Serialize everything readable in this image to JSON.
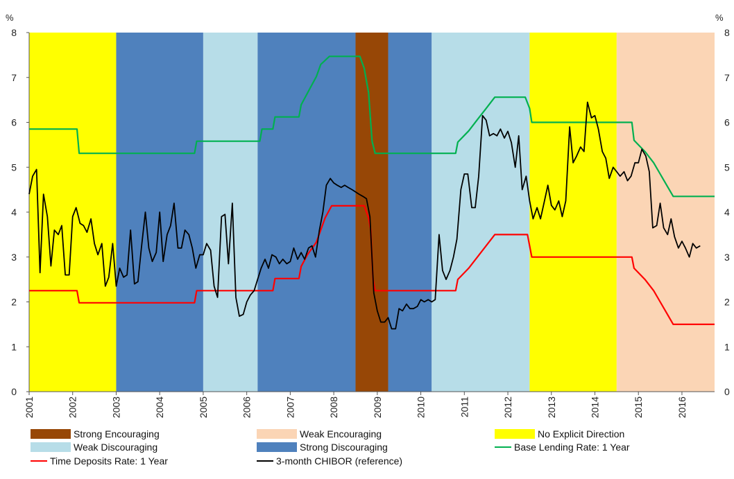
{
  "chart_data": {
    "type": "line",
    "y_unit_left": "%",
    "y_unit_right": "%",
    "ylim": [
      0,
      8
    ],
    "y_ticks": [
      "0",
      "1",
      "2",
      "3",
      "4",
      "5",
      "6",
      "7",
      "8"
    ],
    "xlim": [
      2001.0,
      2016.75
    ],
    "x_ticks": [
      "2001",
      "2002",
      "2003",
      "2004",
      "2005",
      "2006",
      "2007",
      "2008",
      "2009",
      "2010",
      "2011",
      "2012",
      "2013",
      "2014",
      "2015",
      "2016"
    ],
    "grid": false,
    "legend_position": "bottom",
    "categories": {
      "strong_encouraging": {
        "label": "Strong Encouraging",
        "color": "#974706"
      },
      "weak_encouraging": {
        "label": "Weak Encouraging",
        "color": "#fbd5b5"
      },
      "no_explicit": {
        "label": "No Explicit Direction",
        "color": "#ffff00"
      },
      "weak_discouraging": {
        "label": "Weak Discouraging",
        "color": "#b7dde8"
      },
      "strong_discouraging": {
        "label": "Strong Discouraging",
        "color": "#4f81bd"
      }
    },
    "regimes": [
      {
        "start": 2001.0,
        "end": 2003.0,
        "category": "no_explicit"
      },
      {
        "start": 2003.0,
        "end": 2005.0,
        "category": "strong_discouraging"
      },
      {
        "start": 2005.0,
        "end": 2006.25,
        "category": "weak_discouraging"
      },
      {
        "start": 2006.25,
        "end": 2008.5,
        "category": "strong_discouraging"
      },
      {
        "start": 2008.5,
        "end": 2009.25,
        "category": "strong_encouraging"
      },
      {
        "start": 2009.25,
        "end": 2010.25,
        "category": "strong_discouraging"
      },
      {
        "start": 2010.25,
        "end": 2012.5,
        "category": "weak_discouraging"
      },
      {
        "start": 2012.5,
        "end": 2014.5,
        "category": "no_explicit"
      },
      {
        "start": 2014.5,
        "end": 2016.75,
        "category": "weak_encouraging"
      }
    ],
    "series": [
      {
        "name": "Base Lending Rate: 1 Year",
        "color": "#00b050",
        "step": true,
        "points": [
          [
            2001.0,
            5.85
          ],
          [
            2002.1,
            5.85
          ],
          [
            2002.15,
            5.31
          ],
          [
            2004.8,
            5.31
          ],
          [
            2004.85,
            5.58
          ],
          [
            2006.3,
            5.58
          ],
          [
            2006.35,
            5.85
          ],
          [
            2006.6,
            5.85
          ],
          [
            2006.65,
            6.12
          ],
          [
            2007.2,
            6.12
          ],
          [
            2007.25,
            6.39
          ],
          [
            2007.35,
            6.57
          ],
          [
            2007.5,
            6.84
          ],
          [
            2007.6,
            7.02
          ],
          [
            2007.7,
            7.29
          ],
          [
            2007.9,
            7.47
          ],
          [
            2008.6,
            7.47
          ],
          [
            2008.7,
            7.2
          ],
          [
            2008.8,
            6.66
          ],
          [
            2008.88,
            5.58
          ],
          [
            2008.95,
            5.31
          ],
          [
            2010.8,
            5.31
          ],
          [
            2010.85,
            5.56
          ],
          [
            2011.1,
            5.81
          ],
          [
            2011.3,
            6.06
          ],
          [
            2011.5,
            6.31
          ],
          [
            2011.7,
            6.56
          ],
          [
            2012.4,
            6.56
          ],
          [
            2012.5,
            6.31
          ],
          [
            2012.55,
            6.0
          ],
          [
            2014.85,
            6.0
          ],
          [
            2014.9,
            5.6
          ],
          [
            2015.15,
            5.35
          ],
          [
            2015.35,
            5.1
          ],
          [
            2015.5,
            4.85
          ],
          [
            2015.65,
            4.6
          ],
          [
            2015.8,
            4.35
          ],
          [
            2016.75,
            4.35
          ]
        ]
      },
      {
        "name": "Time Deposits Rate: 1 Year",
        "color": "#ff0000",
        "step": true,
        "points": [
          [
            2001.0,
            2.25
          ],
          [
            2002.1,
            2.25
          ],
          [
            2002.15,
            1.98
          ],
          [
            2004.8,
            1.98
          ],
          [
            2004.85,
            2.25
          ],
          [
            2006.6,
            2.25
          ],
          [
            2006.65,
            2.52
          ],
          [
            2007.2,
            2.52
          ],
          [
            2007.25,
            2.79
          ],
          [
            2007.4,
            3.06
          ],
          [
            2007.6,
            3.33
          ],
          [
            2007.7,
            3.6
          ],
          [
            2007.8,
            3.87
          ],
          [
            2007.95,
            4.14
          ],
          [
            2008.7,
            4.14
          ],
          [
            2008.8,
            3.87
          ],
          [
            2008.85,
            3.6
          ],
          [
            2008.9,
            2.52
          ],
          [
            2008.95,
            2.25
          ],
          [
            2010.8,
            2.25
          ],
          [
            2010.85,
            2.5
          ],
          [
            2011.1,
            2.75
          ],
          [
            2011.3,
            3.0
          ],
          [
            2011.5,
            3.25
          ],
          [
            2011.7,
            3.5
          ],
          [
            2012.45,
            3.5
          ],
          [
            2012.5,
            3.25
          ],
          [
            2012.55,
            3.0
          ],
          [
            2014.85,
            3.0
          ],
          [
            2014.9,
            2.75
          ],
          [
            2015.15,
            2.5
          ],
          [
            2015.35,
            2.25
          ],
          [
            2015.5,
            2.0
          ],
          [
            2015.65,
            1.75
          ],
          [
            2015.8,
            1.5
          ],
          [
            2016.75,
            1.5
          ]
        ]
      },
      {
        "name": "3-month CHIBOR (reference)",
        "color": "#000000",
        "step": false,
        "points": [
          [
            2001.0,
            4.4
          ],
          [
            2001.08,
            4.8
          ],
          [
            2001.17,
            4.95
          ],
          [
            2001.25,
            2.65
          ],
          [
            2001.33,
            4.4
          ],
          [
            2001.42,
            3.9
          ],
          [
            2001.5,
            2.8
          ],
          [
            2001.58,
            3.6
          ],
          [
            2001.67,
            3.5
          ],
          [
            2001.75,
            3.7
          ],
          [
            2001.83,
            2.6
          ],
          [
            2001.92,
            2.6
          ],
          [
            2002.0,
            3.9
          ],
          [
            2002.08,
            4.1
          ],
          [
            2002.17,
            3.75
          ],
          [
            2002.25,
            3.7
          ],
          [
            2002.33,
            3.55
          ],
          [
            2002.42,
            3.85
          ],
          [
            2002.5,
            3.3
          ],
          [
            2002.58,
            3.05
          ],
          [
            2002.67,
            3.3
          ],
          [
            2002.75,
            2.35
          ],
          [
            2002.83,
            2.55
          ],
          [
            2002.92,
            3.3
          ],
          [
            2003.0,
            2.35
          ],
          [
            2003.08,
            2.75
          ],
          [
            2003.17,
            2.55
          ],
          [
            2003.25,
            2.6
          ],
          [
            2003.33,
            3.6
          ],
          [
            2003.42,
            2.4
          ],
          [
            2003.5,
            2.45
          ],
          [
            2003.58,
            3.2
          ],
          [
            2003.67,
            4.0
          ],
          [
            2003.75,
            3.2
          ],
          [
            2003.83,
            2.9
          ],
          [
            2003.92,
            3.1
          ],
          [
            2004.0,
            4.0
          ],
          [
            2004.08,
            2.9
          ],
          [
            2004.17,
            3.5
          ],
          [
            2004.25,
            3.7
          ],
          [
            2004.33,
            4.2
          ],
          [
            2004.42,
            3.2
          ],
          [
            2004.5,
            3.2
          ],
          [
            2004.58,
            3.6
          ],
          [
            2004.67,
            3.5
          ],
          [
            2004.75,
            3.2
          ],
          [
            2004.83,
            2.75
          ],
          [
            2004.92,
            3.05
          ],
          [
            2005.0,
            3.05
          ],
          [
            2005.08,
            3.3
          ],
          [
            2005.17,
            3.15
          ],
          [
            2005.25,
            2.35
          ],
          [
            2005.33,
            2.1
          ],
          [
            2005.42,
            3.9
          ],
          [
            2005.5,
            3.95
          ],
          [
            2005.58,
            2.85
          ],
          [
            2005.67,
            4.2
          ],
          [
            2005.75,
            2.1
          ],
          [
            2005.83,
            1.68
          ],
          [
            2005.92,
            1.72
          ],
          [
            2006.0,
            2.0
          ],
          [
            2006.08,
            2.15
          ],
          [
            2006.17,
            2.25
          ],
          [
            2006.25,
            2.5
          ],
          [
            2006.33,
            2.75
          ],
          [
            2006.42,
            2.95
          ],
          [
            2006.5,
            2.75
          ],
          [
            2006.58,
            3.05
          ],
          [
            2006.67,
            3.0
          ],
          [
            2006.75,
            2.85
          ],
          [
            2006.83,
            2.95
          ],
          [
            2006.92,
            2.85
          ],
          [
            2007.0,
            2.9
          ],
          [
            2007.08,
            3.2
          ],
          [
            2007.17,
            2.95
          ],
          [
            2007.25,
            3.1
          ],
          [
            2007.33,
            2.95
          ],
          [
            2007.42,
            3.2
          ],
          [
            2007.5,
            3.25
          ],
          [
            2007.58,
            3.0
          ],
          [
            2007.67,
            3.6
          ],
          [
            2007.75,
            4.0
          ],
          [
            2007.83,
            4.6
          ],
          [
            2007.92,
            4.75
          ],
          [
            2008.0,
            4.65
          ],
          [
            2008.08,
            4.6
          ],
          [
            2008.17,
            4.55
          ],
          [
            2008.25,
            4.6
          ],
          [
            2008.33,
            4.55
          ],
          [
            2008.42,
            4.5
          ],
          [
            2008.5,
            4.45
          ],
          [
            2008.58,
            4.4
          ],
          [
            2008.67,
            4.35
          ],
          [
            2008.75,
            4.3
          ],
          [
            2008.83,
            3.9
          ],
          [
            2008.92,
            2.2
          ],
          [
            2009.0,
            1.8
          ],
          [
            2009.08,
            1.55
          ],
          [
            2009.17,
            1.55
          ],
          [
            2009.25,
            1.65
          ],
          [
            2009.33,
            1.4
          ],
          [
            2009.42,
            1.4
          ],
          [
            2009.5,
            1.85
          ],
          [
            2009.58,
            1.8
          ],
          [
            2009.67,
            1.95
          ],
          [
            2009.75,
            1.85
          ],
          [
            2009.83,
            1.85
          ],
          [
            2009.92,
            1.9
          ],
          [
            2010.0,
            2.05
          ],
          [
            2010.08,
            2.0
          ],
          [
            2010.17,
            2.05
          ],
          [
            2010.25,
            2.0
          ],
          [
            2010.33,
            2.05
          ],
          [
            2010.42,
            3.5
          ],
          [
            2010.5,
            2.7
          ],
          [
            2010.58,
            2.5
          ],
          [
            2010.67,
            2.7
          ],
          [
            2010.75,
            3.0
          ],
          [
            2010.83,
            3.4
          ],
          [
            2010.92,
            4.5
          ],
          [
            2011.0,
            4.85
          ],
          [
            2011.08,
            4.85
          ],
          [
            2011.17,
            4.1
          ],
          [
            2011.25,
            4.1
          ],
          [
            2011.33,
            4.8
          ],
          [
            2011.42,
            6.15
          ],
          [
            2011.5,
            6.05
          ],
          [
            2011.58,
            5.7
          ],
          [
            2011.67,
            5.75
          ],
          [
            2011.75,
            5.7
          ],
          [
            2011.83,
            5.85
          ],
          [
            2011.92,
            5.65
          ],
          [
            2012.0,
            5.8
          ],
          [
            2012.08,
            5.55
          ],
          [
            2012.17,
            5.0
          ],
          [
            2012.25,
            5.7
          ],
          [
            2012.33,
            4.5
          ],
          [
            2012.42,
            4.8
          ],
          [
            2012.5,
            4.25
          ],
          [
            2012.58,
            3.85
          ],
          [
            2012.67,
            4.1
          ],
          [
            2012.75,
            3.85
          ],
          [
            2012.83,
            4.2
          ],
          [
            2012.92,
            4.6
          ],
          [
            2013.0,
            4.15
          ],
          [
            2013.08,
            4.05
          ],
          [
            2013.17,
            4.25
          ],
          [
            2013.25,
            3.9
          ],
          [
            2013.33,
            4.25
          ],
          [
            2013.42,
            5.9
          ],
          [
            2013.5,
            5.1
          ],
          [
            2013.58,
            5.25
          ],
          [
            2013.67,
            5.45
          ],
          [
            2013.75,
            5.35
          ],
          [
            2013.83,
            6.45
          ],
          [
            2013.92,
            6.1
          ],
          [
            2014.0,
            6.15
          ],
          [
            2014.08,
            5.85
          ],
          [
            2014.17,
            5.35
          ],
          [
            2014.25,
            5.2
          ],
          [
            2014.33,
            4.75
          ],
          [
            2014.42,
            5.0
          ],
          [
            2014.5,
            4.9
          ],
          [
            2014.58,
            4.8
          ],
          [
            2014.67,
            4.9
          ],
          [
            2014.75,
            4.7
          ],
          [
            2014.83,
            4.8
          ],
          [
            2014.92,
            5.1
          ],
          [
            2015.0,
            5.1
          ],
          [
            2015.08,
            5.4
          ],
          [
            2015.17,
            5.25
          ],
          [
            2015.25,
            4.9
          ],
          [
            2015.33,
            3.65
          ],
          [
            2015.42,
            3.7
          ],
          [
            2015.5,
            4.2
          ],
          [
            2015.58,
            3.65
          ],
          [
            2015.67,
            3.5
          ],
          [
            2015.75,
            3.85
          ],
          [
            2015.83,
            3.45
          ],
          [
            2015.92,
            3.2
          ],
          [
            2016.0,
            3.35
          ],
          [
            2016.08,
            3.2
          ],
          [
            2016.17,
            3.0
          ],
          [
            2016.25,
            3.3
          ],
          [
            2016.33,
            3.2
          ],
          [
            2016.42,
            3.25
          ]
        ]
      }
    ]
  },
  "legend": {
    "rows": [
      [
        {
          "kind": "swatch",
          "ref": "strong_encouraging"
        },
        {
          "kind": "swatch",
          "ref": "weak_encouraging"
        },
        {
          "kind": "swatch",
          "ref": "no_explicit"
        }
      ],
      [
        {
          "kind": "swatch",
          "ref": "weak_discouraging"
        },
        {
          "kind": "swatch",
          "ref": "strong_discouraging"
        },
        {
          "kind": "line",
          "ref": "Base Lending Rate: 1 Year"
        }
      ],
      [
        {
          "kind": "line",
          "ref": "Time Deposits Rate: 1 Year"
        },
        {
          "kind": "line",
          "ref": "3-month CHIBOR (reference)"
        }
      ]
    ]
  }
}
